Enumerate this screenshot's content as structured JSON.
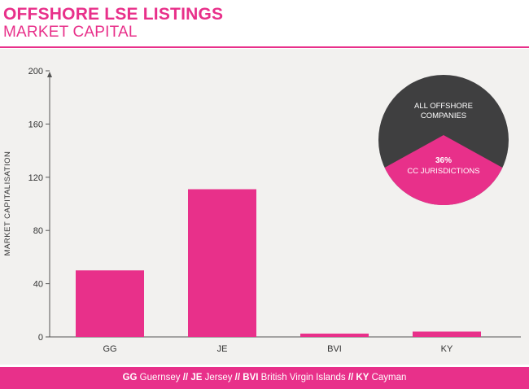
{
  "header": {
    "title": "OFFSHORE LSE LISTINGS",
    "subtitle": "MARKET CAPITAL"
  },
  "colors": {
    "accent": "#e8308a",
    "dark": "#3f3f40",
    "plot_bg": "#f2f1ef",
    "axis": "#555555"
  },
  "chart_data": {
    "type": "bar",
    "title": "OFFSHORE LSE LISTINGS",
    "subtitle": "MARKET CAPITAL",
    "ylabel": "MARKET CAPITALISATION",
    "xlabel": "",
    "categories": [
      "GG",
      "JE",
      "BVI",
      "KY"
    ],
    "values": [
      50,
      111,
      2.5,
      4
    ],
    "yticks": [
      0,
      40,
      80,
      120,
      160,
      200
    ],
    "ylim": [
      0,
      200
    ],
    "grid": false,
    "legend_position": "bottom",
    "inset_pie": {
      "slices": [
        {
          "label": "ALL OFFSHORE COMPANIES",
          "value": 64
        },
        {
          "label": "CC JURISDICTIONS",
          "percent_label": "36%",
          "value": 36
        }
      ]
    }
  },
  "legend": {
    "items": [
      {
        "code": "GG",
        "name": "Guernsey"
      },
      {
        "code": "JE",
        "name": "Jersey"
      },
      {
        "code": "BVI",
        "name": "British Virgin Islands"
      },
      {
        "code": "KY",
        "name": "Cayman"
      }
    ],
    "separator": "//"
  }
}
